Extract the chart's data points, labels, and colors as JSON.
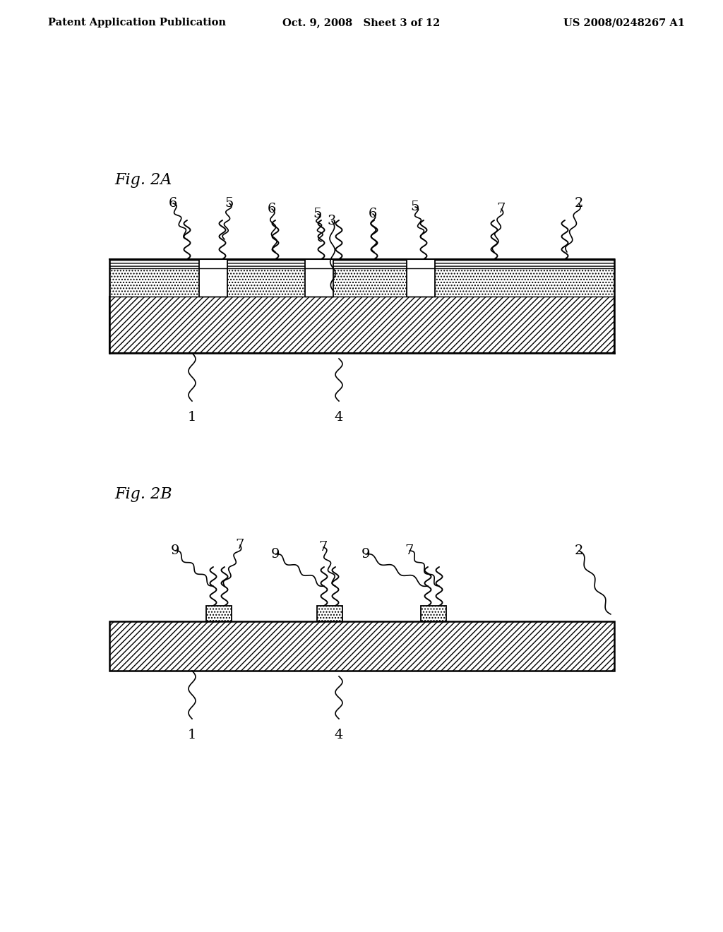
{
  "bg_color": "#ffffff",
  "header_left": "Patent Application Publication",
  "header_mid": "Oct. 9, 2008   Sheet 3 of 12",
  "header_right": "US 2008/0248267 A1",
  "fig2a_label": "Fig. 2A",
  "fig2b_label": "Fig. 2B"
}
